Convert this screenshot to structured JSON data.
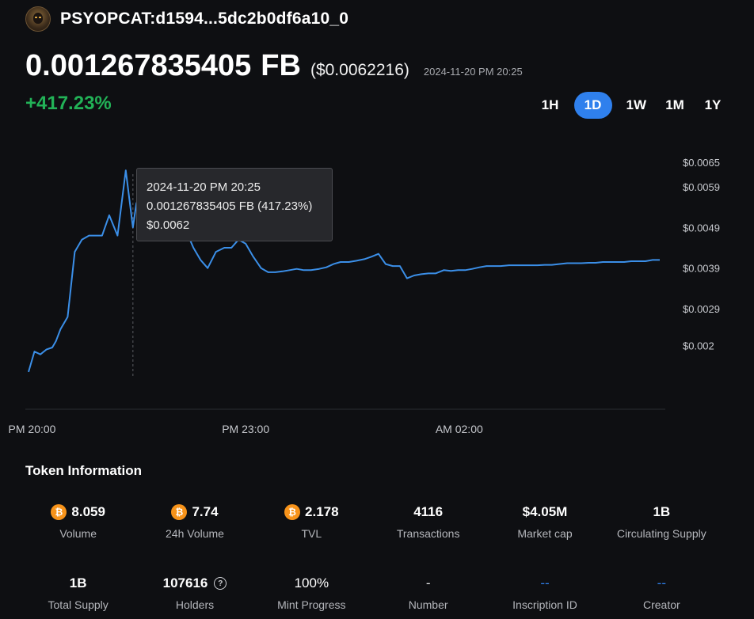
{
  "token": {
    "name": "PSYOPCAT:d1594...5dc2b0df6a10_0",
    "avatar_icon": "cat-avatar-icon"
  },
  "price": {
    "value": "0.001267835405",
    "unit": "FB",
    "usd": "($0.0062216)",
    "timestamp": "2024-11-20 PM 20:25",
    "change": "+417.23%",
    "change_color": "#22b257"
  },
  "ranges": {
    "items": [
      "1H",
      "1D",
      "1W",
      "1M",
      "1Y"
    ],
    "active": "1D",
    "accent": "#2f80ed"
  },
  "tooltip": {
    "line1": "2024-11-20 PM 20:25",
    "line2": "0.001267835405 FB (417.23%)",
    "line3": "$0.0062"
  },
  "chart_data": {
    "type": "line",
    "title": "",
    "xlabel": "",
    "ylabel": "",
    "line_color": "#3b8fe8",
    "y_ticks": [
      "$0.0065",
      "$0.0059",
      "$0.0049",
      "$0.0039",
      "$0.0029",
      "$0.002"
    ],
    "y_tick_values": [
      0.0065,
      0.0059,
      0.0049,
      0.0039,
      0.0029,
      0.002
    ],
    "ylim": [
      0.00125,
      0.0065
    ],
    "x_ticks": [
      "PM 20:00",
      "PM 23:00",
      "AM 02:00"
    ],
    "x_tick_values": [
      1140,
      1320,
      1500
    ],
    "xlim": [
      1137,
      1671
    ],
    "y_visible_precision": "approximate",
    "series": [
      {
        "x": [
          1137,
          1142,
          1147,
          1152,
          1157,
          1160,
          1164,
          1170,
          1176,
          1182,
          1188,
          1193,
          1199,
          1205,
          1212,
          1219,
          1225,
          1228,
          1232,
          1237,
          1241,
          1245,
          1251,
          1257,
          1263,
          1270,
          1276,
          1282,
          1288,
          1295,
          1302,
          1308,
          1314,
          1320,
          1326,
          1333,
          1339,
          1345,
          1351,
          1357,
          1363,
          1369,
          1375,
          1382,
          1388,
          1394,
          1400,
          1407,
          1413,
          1420,
          1426,
          1432,
          1438,
          1444,
          1450,
          1456,
          1462,
          1468,
          1474,
          1480,
          1487,
          1493,
          1499,
          1505,
          1511,
          1517,
          1523,
          1529,
          1535,
          1542,
          1548,
          1554,
          1560,
          1566,
          1572,
          1578,
          1584,
          1591,
          1597,
          1603,
          1609,
          1615,
          1621,
          1627,
          1633,
          1639,
          1645,
          1651,
          1657,
          1663,
          1669
        ],
        "y": [
          0.00135,
          0.00185,
          0.00178,
          0.0019,
          0.00195,
          0.0021,
          0.0024,
          0.0027,
          0.0043,
          0.0046,
          0.0047,
          0.0047,
          0.0047,
          0.0052,
          0.0047,
          0.0063,
          0.0049,
          0.0055,
          0.0053,
          0.005,
          0.0048,
          0.0049,
          0.0051,
          0.005,
          0.0053,
          0.0048,
          0.0044,
          0.0041,
          0.0039,
          0.0043,
          0.0044,
          0.0044,
          0.0046,
          0.0045,
          0.0042,
          0.0039,
          0.0038,
          0.0038,
          0.00382,
          0.00385,
          0.00388,
          0.00385,
          0.00385,
          0.00388,
          0.00392,
          0.004,
          0.00405,
          0.00405,
          0.00408,
          0.00412,
          0.00418,
          0.00425,
          0.004,
          0.00395,
          0.00395,
          0.00365,
          0.00372,
          0.00375,
          0.00377,
          0.00377,
          0.00385,
          0.00383,
          0.00385,
          0.00385,
          0.00388,
          0.00392,
          0.00395,
          0.00395,
          0.00395,
          0.00397,
          0.00397,
          0.00397,
          0.00397,
          0.00397,
          0.00398,
          0.00398,
          0.004,
          0.00402,
          0.00402,
          0.00402,
          0.00403,
          0.00403,
          0.00405,
          0.00405,
          0.00405,
          0.00405,
          0.00407,
          0.00407,
          0.00407,
          0.0041,
          0.0041
        ]
      }
    ],
    "crosshair_x": 1225
  },
  "info": {
    "title": "Token Information",
    "coin_icon": "bitcoin-icon",
    "coin_glyph": "₿",
    "row1": [
      {
        "value": "8.059",
        "label": "Volume",
        "coin": true
      },
      {
        "value": "7.74",
        "label": "24h Volume",
        "coin": true
      },
      {
        "value": "2.178",
        "label": "TVL",
        "coin": true
      },
      {
        "value": "4116",
        "label": "Transactions",
        "coin": false
      },
      {
        "value": "$4.05M",
        "label": "Market cap",
        "coin": false
      },
      {
        "value": "1B",
        "label": "Circulating Supply",
        "coin": false
      }
    ],
    "row2": [
      {
        "value": "1B",
        "label": "Total Supply"
      },
      {
        "value": "107616",
        "label": "Holders",
        "help": "?"
      },
      {
        "value": "100%",
        "label": "Mint Progress"
      },
      {
        "value": "-",
        "label": "Number"
      },
      {
        "value": "--",
        "label": "Inscription ID"
      },
      {
        "value": "--",
        "label": "Creator"
      }
    ]
  }
}
